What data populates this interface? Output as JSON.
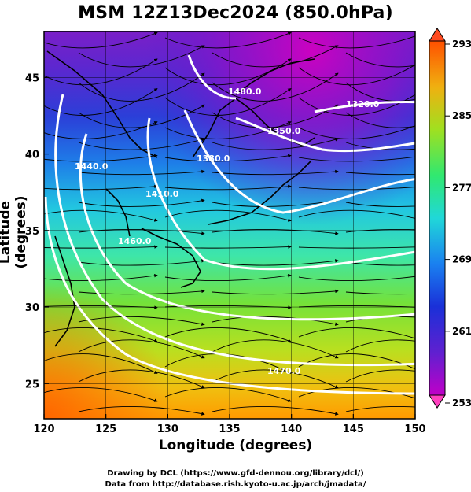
{
  "title": "MSM 12Z13Dec2024 (850.0hPa)",
  "axes": {
    "xlabel": "Longitude (degrees)",
    "ylabel": "Latitude  (degrees)",
    "x_ticks": [
      "120",
      "125",
      "130",
      "135",
      "140",
      "145",
      "150"
    ],
    "y_ticks": [
      "25",
      "30",
      "35",
      "40",
      "45"
    ]
  },
  "colorbar": {
    "labels": [
      "293",
      "285",
      "277",
      "269",
      "261",
      "253"
    ],
    "min": 253,
    "max": 293
  },
  "contours": [
    {
      "label": "1320.0"
    },
    {
      "label": "1350.0"
    },
    {
      "label": "1380.0"
    },
    {
      "label": "1410.0"
    },
    {
      "label": "1440.0"
    },
    {
      "label": "1460.0"
    },
    {
      "label": "1470.0"
    },
    {
      "label": "1480.0"
    }
  ],
  "credits": {
    "line1": "Drawing by DCL (https://www.gfd-dennou.org/library/dcl/)",
    "line2": "Data from http://database.rish.kyoto-u.ac.jp/arch/jmadata/"
  },
  "colors": {
    "cold": "#a020c0",
    "cool": "#2030d0",
    "mid": "#20e0d0",
    "warm": "#80e020",
    "hot": "#ff8000",
    "contour": "#ffffff",
    "streamline": "#000000"
  }
}
